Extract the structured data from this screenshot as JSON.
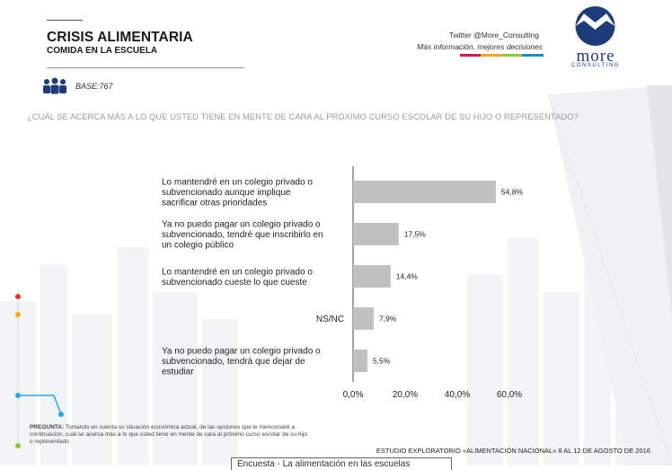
{
  "header": {
    "title": "CRISIS ALIMENTARIA",
    "subtitle": "COMIDA EN LA ESCUELA",
    "base": "BASE:767"
  },
  "brand": {
    "twitter": "Twitter @More_Consulting",
    "tagline": "Más información, mejores decisiones",
    "logo_word": "more",
    "logo_sub": "CONSULTING",
    "logo_color": "#1f3c7a"
  },
  "question": "¿CUÁL SE ACERCA MÁS A LO QUE USTED TIENE EN MENTE DE CARA AL PRÓXIMO CURSO ESCOLAR DE SU HIJO O REPRESENTADO?",
  "chart_data": {
    "type": "bar",
    "orientation": "horizontal",
    "categories": [
      [
        "Lo mantendré en un colegio privado o",
        "subvencionado aunque implique",
        "sacrificar otras prioridades"
      ],
      [
        "Ya no puedo pagar un colegio privado o",
        "subvencionado, tendré que inscribirlo en",
        "un colegio público"
      ],
      [
        "Lo mantendré en un colegio privado o",
        "subvencionado cueste lo que cueste"
      ],
      [
        "NS/NC"
      ],
      [
        "Ya no puedo pagar un colegio privado o",
        "subvencionado, tendrá que dejar de",
        "estudiar"
      ]
    ],
    "values": [
      54.8,
      17.5,
      14.4,
      7.9,
      5.5
    ],
    "value_labels": [
      "54,8%",
      "17,5%",
      "14,4%",
      "7,9%",
      "5,5%"
    ],
    "xlim": [
      0,
      60
    ],
    "ticks": [
      0,
      20,
      40,
      60
    ],
    "tick_labels": [
      "0,0%",
      "20,0%",
      "40,0%",
      "60,0%"
    ],
    "bar_color": "#c0c0c0"
  },
  "footnote": {
    "label": "PREGUNTA:",
    "text": "Tomando en cuenta su situación económica actual, de las opciones que le mencionaré a continuación, cuál se acerca más a lo que usted tiene en mente de cara al próximo curso escolar de su hijo o representado"
  },
  "study": "ESTUDIO EXPLORATORIO «ALIMENTACIÓN NACIONAL» 8 AL 12 DE AGOSTO DE 2016",
  "tab_label": "Encuesta - La alimentación en las escuelas"
}
